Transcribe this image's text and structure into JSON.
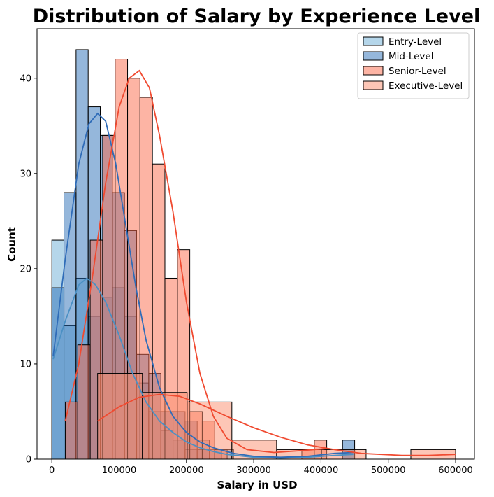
{
  "chart_data": {
    "type": "histogram",
    "title": "Distribution of Salary by Experience Level",
    "xlabel": "Salary in USD",
    "ylabel": "Count",
    "xlim": [
      -22000,
      628000
    ],
    "ylim": [
      0,
      45.2
    ],
    "xticks": [
      0,
      100000,
      200000,
      300000,
      400000,
      500000,
      600000
    ],
    "xtick_labels": [
      "0",
      "100000",
      "200000",
      "300000",
      "400000",
      "500000",
      "600000"
    ],
    "yticks": [
      0,
      10,
      20,
      30,
      40
    ],
    "ytick_labels": [
      "0",
      "10",
      "20",
      "30",
      "40"
    ],
    "grid": false,
    "legend_position": "top-right",
    "kde": true,
    "series": [
      {
        "name": "Entry-Level",
        "fill": "#6baed6",
        "kde_color": "#4a90c4",
        "bin_edges": [
          0,
          18000,
          36000,
          54000,
          72000,
          90000,
          108000,
          126000,
          144000,
          162000,
          180000,
          198000,
          216000,
          234000,
          252000,
          270000,
          288000,
          306000,
          324000,
          342000,
          360000,
          378000,
          396000,
          414000,
          432000,
          450000
        ],
        "counts": [
          23,
          14,
          19,
          15,
          17,
          18,
          15,
          8,
          5,
          3,
          2,
          1,
          2,
          0,
          1,
          0,
          0,
          0,
          0,
          0,
          0,
          0,
          0,
          0,
          1
        ],
        "kde": [
          [
            2000,
            10.5
          ],
          [
            20000,
            14.5
          ],
          [
            40000,
            18.3
          ],
          [
            52000,
            19.0
          ],
          [
            65000,
            18.3
          ],
          [
            80000,
            16.5
          ],
          [
            100000,
            13.0
          ],
          [
            120000,
            9.0
          ],
          [
            140000,
            6.0
          ],
          [
            160000,
            4.0
          ],
          [
            180000,
            2.8
          ],
          [
            200000,
            1.8
          ],
          [
            220000,
            1.2
          ],
          [
            240000,
            0.8
          ],
          [
            260000,
            0.5
          ],
          [
            300000,
            0.2
          ],
          [
            340000,
            0.1
          ],
          [
            380000,
            0.2
          ],
          [
            420000,
            0.4
          ],
          [
            448000,
            0.5
          ]
        ]
      },
      {
        "name": "Mid-Level",
        "fill": "#2c6fb7",
        "kde_color": "#2f6cb8",
        "bin_edges": [
          0,
          18000,
          36000,
          54000,
          72000,
          90000,
          108000,
          126000,
          144000,
          162000,
          180000,
          198000,
          216000,
          234000,
          252000,
          270000,
          288000,
          306000,
          324000,
          342000,
          360000,
          378000,
          396000,
          414000,
          432000,
          450000
        ],
        "counts": [
          18,
          28,
          43,
          37,
          34,
          28,
          24,
          11,
          9,
          5,
          5,
          4,
          1,
          1,
          0,
          0,
          0,
          0,
          0,
          0,
          0,
          0,
          0,
          0,
          2
        ],
        "kde": [
          [
            2000,
            10.8
          ],
          [
            20000,
            21.0
          ],
          [
            40000,
            31.0
          ],
          [
            55000,
            35.2
          ],
          [
            68000,
            36.3
          ],
          [
            80000,
            35.5
          ],
          [
            95000,
            31.0
          ],
          [
            110000,
            24.5
          ],
          [
            125000,
            18.0
          ],
          [
            140000,
            12.5
          ],
          [
            160000,
            7.5
          ],
          [
            180000,
            4.5
          ],
          [
            200000,
            2.8
          ],
          [
            220000,
            1.8
          ],
          [
            240000,
            1.2
          ],
          [
            270000,
            0.6
          ],
          [
            300000,
            0.3
          ],
          [
            340000,
            0.2
          ],
          [
            380000,
            0.3
          ],
          [
            420000,
            0.6
          ],
          [
            448000,
            0.7
          ]
        ]
      },
      {
        "name": "Senior-Level",
        "fill": "#fb6a4a",
        "kde_color": "#f04a30",
        "bin_edges": [
          20000,
          38500,
          57000,
          75500,
          94000,
          112500,
          131000,
          149500,
          168000,
          186500,
          205000,
          223500,
          242000,
          260500,
          279000,
          297500,
          316000,
          334500,
          353000,
          371500,
          390000,
          408500
        ],
        "counts": [
          6,
          12,
          23,
          34,
          42,
          40,
          38,
          31,
          19,
          22,
          5,
          4,
          1,
          0,
          0,
          0,
          0,
          0,
          0,
          1,
          2
        ],
        "kde": [
          [
            20000,
            4.0
          ],
          [
            40000,
            10.0
          ],
          [
            60000,
            19.0
          ],
          [
            80000,
            29.0
          ],
          [
            100000,
            37.0
          ],
          [
            115000,
            40.0
          ],
          [
            130000,
            40.8
          ],
          [
            145000,
            39.0
          ],
          [
            160000,
            34.0
          ],
          [
            180000,
            26.0
          ],
          [
            200000,
            16.5
          ],
          [
            220000,
            9.0
          ],
          [
            240000,
            4.5
          ],
          [
            260000,
            2.2
          ],
          [
            290000,
            1.0
          ],
          [
            330000,
            0.7
          ],
          [
            370000,
            0.9
          ],
          [
            408000,
            1.1
          ]
        ]
      },
      {
        "name": "Executive-Level",
        "fill": "#fc8d6e",
        "kde_color": "#f04a30",
        "bin_edges": [
          68000,
          134500,
          201000,
          267500,
          334000,
          400500,
          467000,
          533500,
          600000
        ],
        "counts": [
          9,
          7,
          6,
          2,
          1,
          1,
          0,
          1
        ],
        "kde": [
          [
            68000,
            4.0
          ],
          [
            100000,
            5.5
          ],
          [
            130000,
            6.5
          ],
          [
            160000,
            6.8
          ],
          [
            190000,
            6.6
          ],
          [
            220000,
            5.8
          ],
          [
            260000,
            4.5
          ],
          [
            300000,
            3.3
          ],
          [
            340000,
            2.3
          ],
          [
            380000,
            1.5
          ],
          [
            420000,
            1.0
          ],
          [
            460000,
            0.6
          ],
          [
            520000,
            0.4
          ],
          [
            560000,
            0.4
          ],
          [
            600000,
            0.5
          ]
        ]
      }
    ]
  }
}
